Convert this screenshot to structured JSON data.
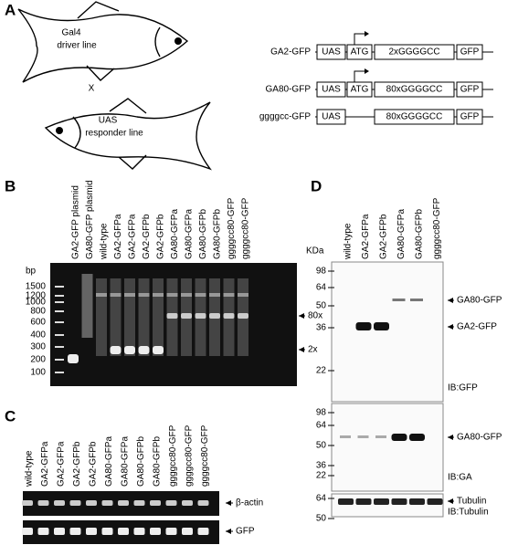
{
  "panel_a": {
    "label": "A",
    "cross": {
      "driver": [
        "Gal4",
        "driver line"
      ],
      "symbol": "X",
      "responder": [
        "UAS",
        "responder line"
      ]
    },
    "constructs": [
      {
        "name": "GA2-GFP",
        "parts": [
          "UAS",
          "ATG",
          "2xGGGGCC",
          "GFP"
        ]
      },
      {
        "name": "GA80-GFP",
        "parts": [
          "UAS",
          "ATG",
          "80xGGGGCC",
          "GFP"
        ]
      },
      {
        "name": "ggggcc-GFP",
        "parts": [
          "UAS",
          "80xGGGGCC",
          "GFP"
        ]
      }
    ]
  },
  "panel_b": {
    "label": "B",
    "unit": "bp",
    "lanes": [
      "GA2-GFP plasmid",
      "GA80-GFP plasmid",
      "wild-type",
      "GA2-GFPa",
      "GA2-GFPa",
      "GA2-GFPb",
      "GA2-GFPb",
      "GA80-GFPa",
      "GA80-GFPa",
      "GA80-GFPb",
      "GA80-GFPb",
      "ggggcc80-GFP",
      "ggggcc80-GFP"
    ],
    "ladder": [
      1500,
      1200,
      1000,
      800,
      600,
      400,
      300,
      200,
      100
    ],
    "arrows": [
      "80x",
      "2x"
    ]
  },
  "panel_c": {
    "label": "C",
    "lanes": [
      "wild-type",
      "GA2-GFPa",
      "GA2-GFPa",
      "GA2-GFPb",
      "GA2-GFPb",
      "GA80-GFPa",
      "GA80-GFPa",
      "GA80-GFPb",
      "GA80-GFPb",
      "ggggcc80-GFP",
      "ggggcc80-GFP",
      "ggggcc80-GFP"
    ],
    "rows": [
      "β-actin",
      "GFP"
    ]
  },
  "panel_d": {
    "label": "D",
    "unit": "KDa",
    "lanes": [
      "wild-type",
      "GA2-GFPa",
      "GA2-GFPb",
      "GA80-GFPa",
      "GA80-GFPb",
      "ggggcc80-GFP"
    ],
    "blots": [
      {
        "markers": [
          98,
          64,
          50,
          36,
          22
        ],
        "arrows": [
          "GA80-GFP",
          "GA2-GFP"
        ],
        "antibody": "IB:GFP"
      },
      {
        "markers": [
          98,
          64,
          50,
          36,
          22
        ],
        "arrows": [
          "GA80-GFP"
        ],
        "antibody": "IB:GA"
      },
      {
        "markers": [
          64,
          50
        ],
        "arrows": [
          "Tubulin"
        ],
        "antibody": "IB:Tubulin"
      }
    ]
  }
}
